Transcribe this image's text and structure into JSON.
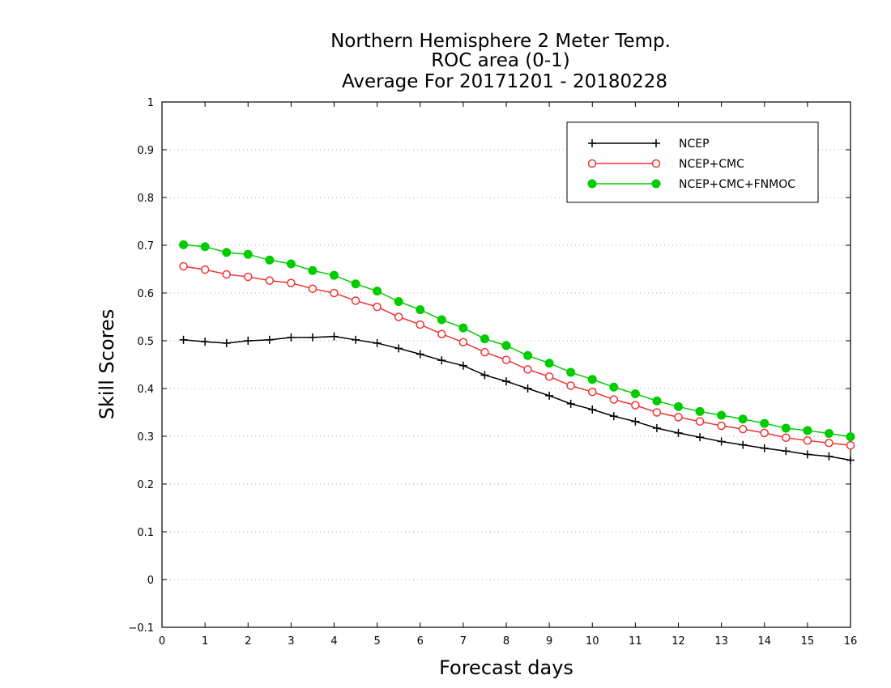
{
  "chart_data": {
    "type": "line",
    "title": [
      "Northern Hemisphere 2 Meter Temp.",
      "ROC area (0-1)",
      "Average For 20171201 - 20180228"
    ],
    "xlabel": "Forecast days",
    "ylabel": "Skill Scores",
    "xlim": [
      0,
      16
    ],
    "ylim": [
      -0.1,
      1
    ],
    "xticks": [
      "0",
      "1",
      "2",
      "3",
      "4",
      "5",
      "6",
      "7",
      "8",
      "9",
      "10",
      "11",
      "12",
      "13",
      "14",
      "15",
      "16"
    ],
    "yticks": [
      "−0.1",
      "0",
      "0.1",
      "0.2",
      "0.3",
      "0.4",
      "0.5",
      "0.6",
      "0.7",
      "0.8",
      "0.9",
      "1"
    ],
    "grid": "horizontal dotted",
    "legend_position": "top-right",
    "x": [
      0.5,
      1,
      1.5,
      2,
      2.5,
      3,
      3.5,
      4,
      4.5,
      5,
      5.5,
      6,
      6.5,
      7,
      7.5,
      8,
      8.5,
      9,
      9.5,
      10,
      10.5,
      11,
      11.5,
      12,
      12.5,
      13,
      13.5,
      14,
      14.5,
      15,
      15.5,
      16
    ],
    "series": [
      {
        "name": "NCEP",
        "color": "#000000",
        "marker": "plus",
        "values": [
          0.502,
          0.498,
          0.495,
          0.5,
          0.502,
          0.507,
          0.507,
          0.509,
          0.502,
          0.495,
          0.484,
          0.472,
          0.459,
          0.448,
          0.428,
          0.415,
          0.4,
          0.385,
          0.368,
          0.356,
          0.342,
          0.331,
          0.317,
          0.307,
          0.298,
          0.289,
          0.282,
          0.275,
          0.269,
          0.262,
          0.258,
          0.25
        ]
      },
      {
        "name": "NCEP+CMC",
        "color": "#ee3333",
        "marker": "open-circle",
        "values": [
          0.656,
          0.649,
          0.639,
          0.634,
          0.626,
          0.621,
          0.609,
          0.6,
          0.584,
          0.571,
          0.55,
          0.534,
          0.514,
          0.497,
          0.476,
          0.46,
          0.44,
          0.425,
          0.406,
          0.393,
          0.377,
          0.365,
          0.35,
          0.34,
          0.331,
          0.322,
          0.315,
          0.307,
          0.297,
          0.291,
          0.286,
          0.281
        ]
      },
      {
        "name": "NCEP+CMC+FNMOC",
        "color": "#00cc00",
        "marker": "filled-circle",
        "values": [
          0.701,
          0.697,
          0.685,
          0.681,
          0.669,
          0.661,
          0.647,
          0.637,
          0.619,
          0.604,
          0.582,
          0.565,
          0.544,
          0.527,
          0.504,
          0.49,
          0.469,
          0.453,
          0.434,
          0.419,
          0.403,
          0.389,
          0.374,
          0.362,
          0.352,
          0.344,
          0.336,
          0.327,
          0.317,
          0.312,
          0.306,
          0.299
        ]
      }
    ]
  }
}
